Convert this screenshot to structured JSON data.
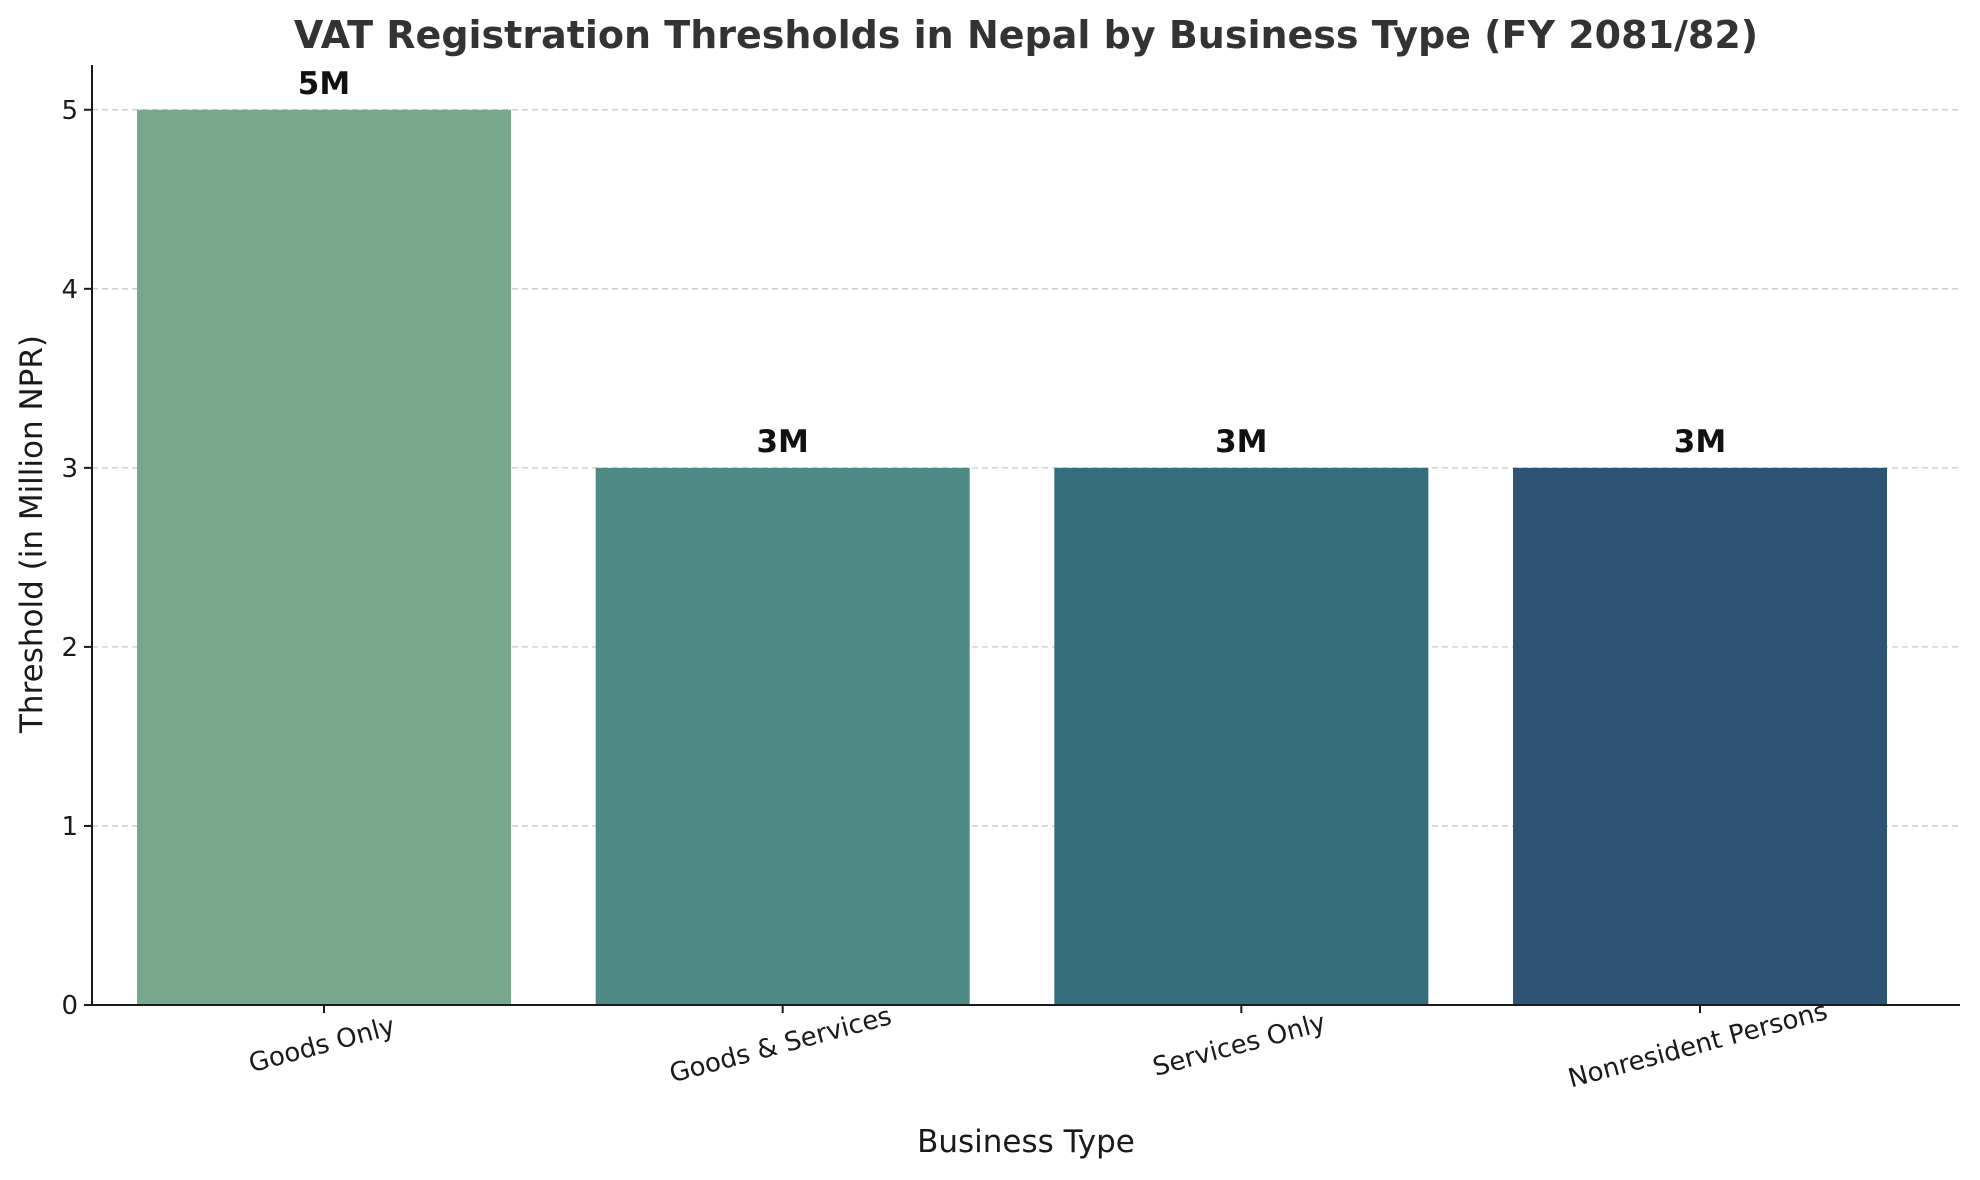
{
  "chart_data": {
    "type": "bar",
    "title": "VAT Registration Thresholds in Nepal by Business Type (FY 2081/82)",
    "xlabel": "Business Type",
    "ylabel": "Threshold (in Million NPR)",
    "categories": [
      "Goods Only",
      "Goods & Services",
      "Services Only",
      "Nonresident Persons"
    ],
    "values": [
      5,
      3,
      3,
      3
    ],
    "data_labels": [
      "5M",
      "3M",
      "3M",
      "3M"
    ],
    "colors": [
      "#78a78e",
      "#4e8a84",
      "#346e7c",
      "#2e5375"
    ],
    "ylim": [
      0,
      5.25
    ],
    "yticks": [
      0,
      1,
      2,
      3,
      4,
      5
    ],
    "grid": "y-dashed",
    "legend": "none"
  }
}
